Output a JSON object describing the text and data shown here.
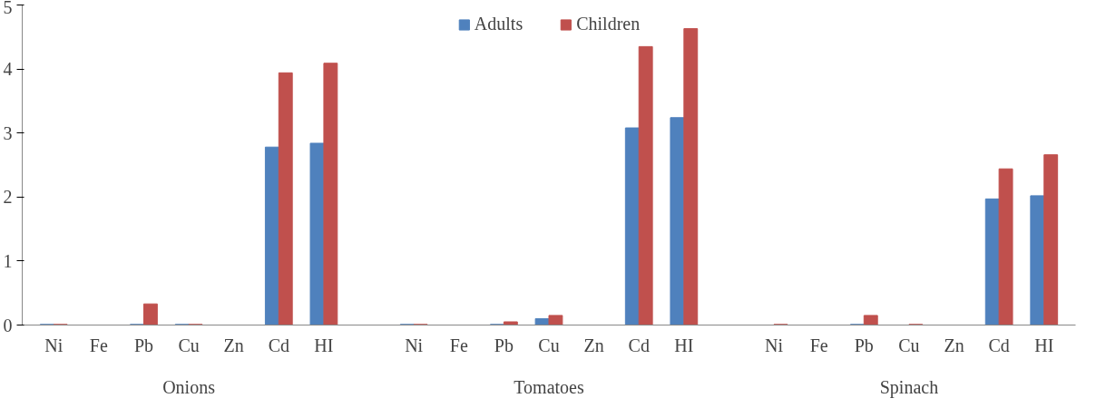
{
  "chart_data": {
    "type": "bar",
    "categories": [
      "Ni",
      "Fe",
      "Pb",
      "Cu",
      "Zn",
      "Cd",
      "HI",
      null,
      "Ni",
      "Fe",
      "Pb",
      "Cu",
      "Zn",
      "Cd",
      "HI",
      null,
      "Ni",
      "Fe",
      "Pb",
      "Cu",
      "Zn",
      "Cd",
      "HI"
    ],
    "series": [
      {
        "name": "Adults",
        "color": "#4f81bd",
        "values": [
          0.01,
          0,
          0.01,
          0.01,
          0,
          2.78,
          2.84,
          null,
          0.01,
          0,
          0.01,
          0.1,
          0,
          3.08,
          3.24,
          null,
          0,
          0,
          0.01,
          0,
          0,
          1.97,
          2.02
        ]
      },
      {
        "name": "Children",
        "color": "#c0504d",
        "values": [
          0.01,
          0,
          0.33,
          0.01,
          0,
          3.94,
          4.09,
          null,
          0.01,
          0,
          0.05,
          0.15,
          0,
          4.35,
          4.63,
          null,
          0.01,
          0,
          0.15,
          0.01,
          0,
          2.44,
          2.66
        ]
      }
    ],
    "annotations": [
      "Onions",
      "Tomatoes",
      "Spinach"
    ],
    "ylim": [
      0,
      5
    ],
    "yticks": [
      0,
      1,
      2,
      3,
      4,
      5
    ],
    "grid": false,
    "legend": "top"
  }
}
